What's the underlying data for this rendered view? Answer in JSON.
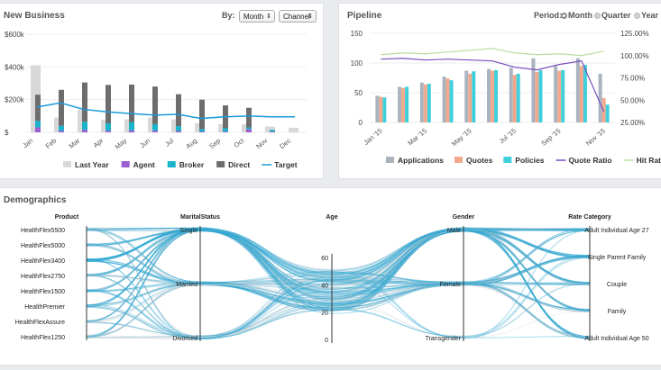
{
  "new_business": {
    "title": "New Business",
    "by_label": "By:",
    "period_select": "Month",
    "group_select": "Channel",
    "legend": [
      {
        "name": "Last Year",
        "color": "#d8d8d8",
        "type": "box"
      },
      {
        "name": "Agent",
        "color": "#9b5fd0",
        "type": "box"
      },
      {
        "name": "Broker",
        "color": "#1ab3c9",
        "type": "box"
      },
      {
        "name": "Direct",
        "color": "#6d6d6d",
        "type": "box"
      },
      {
        "name": "Target",
        "color": "#1a9ad6",
        "type": "line"
      }
    ]
  },
  "pipeline": {
    "title": "Pipeline",
    "period_label": "Period:",
    "options": [
      {
        "label": "Month",
        "selected": true
      },
      {
        "label": "Quarter",
        "selected": false
      },
      {
        "label": "Year",
        "selected": false
      }
    ],
    "legend": [
      {
        "name": "Applications",
        "color": "#a9b4c0",
        "type": "box"
      },
      {
        "name": "Quotes",
        "color": "#f3a98d",
        "type": "box"
      },
      {
        "name": "Policies",
        "color": "#3fd0dc",
        "type": "box"
      },
      {
        "name": "Quote Ratio",
        "color": "#7a4fc0",
        "type": "line"
      },
      {
        "name": "Hit Ratio",
        "color": "#b9dca0",
        "type": "line"
      }
    ]
  },
  "demographics": {
    "title": "Demographics",
    "axes": [
      {
        "name": "Product",
        "labels": [
          "HealthFlex5500",
          "HealthFlex5000",
          "HealthFlex3400",
          "HealthFlex2750",
          "HealthFlex1500",
          "HealthPremier",
          "HealthFlexAssure",
          "HealthFlex1250"
        ]
      },
      {
        "name": "MaritalStatus",
        "labels": [
          "Single",
          "Married",
          "Divorced"
        ]
      },
      {
        "name": "Age",
        "labels": [
          "60",
          "40",
          "20",
          "0"
        ]
      },
      {
        "name": "Gender",
        "labels": [
          "Male",
          "Female",
          "Transgender"
        ]
      },
      {
        "name": "Rate Category",
        "labels": [
          "Adult Individual Age 27",
          "Single Parent Family",
          "Couple",
          "Family",
          "Adult Individual Age 50"
        ]
      }
    ]
  },
  "chart_data": [
    {
      "type": "bar",
      "categories": [
        "Jan",
        "Feb",
        "Mar",
        "Apr",
        "May",
        "Jun",
        "Jul",
        "Aug",
        "Sep",
        "Oct",
        "Nov",
        "Dec"
      ],
      "yticks": [
        "$600k",
        "$400k",
        "$200k",
        "$"
      ],
      "ylim": [
        0,
        600000
      ],
      "series": [
        {
          "name": "Last Year",
          "color": "#d8d8d8",
          "values": [
            410000,
            90000,
            140000,
            75000,
            80000,
            90000,
            80000,
            55000,
            50000,
            50000,
            35000,
            28000
          ]
        },
        {
          "name": "Agent",
          "color": "#9b5fd0",
          "values": [
            30000,
            10000,
            15000,
            10000,
            12000,
            10000,
            8000,
            5000,
            5000,
            20000,
            5000,
            0
          ]
        },
        {
          "name": "Broker",
          "color": "#1ab3c9",
          "values": [
            40000,
            30000,
            50000,
            45000,
            50000,
            40000,
            30000,
            15000,
            20000,
            10000,
            10000,
            0
          ]
        },
        {
          "name": "Direct",
          "color": "#6d6d6d",
          "values": [
            160000,
            220000,
            240000,
            235000,
            230000,
            230000,
            195000,
            180000,
            140000,
            120000,
            0,
            0
          ]
        },
        {
          "name": "Target",
          "color": "#1a9ad6",
          "values": [
            155000,
            180000,
            140000,
            125000,
            115000,
            105000,
            110000,
            85000,
            95000,
            100000,
            95000,
            95000
          ]
        }
      ]
    },
    {
      "type": "bar",
      "categories": [
        "Jan '15",
        "Feb '15",
        "Mar '15",
        "Apr '15",
        "May '15",
        "Jun '15",
        "Jul '15",
        "Aug '15",
        "Sep '15",
        "Oct '15",
        "Nov '15"
      ],
      "xticks": [
        "Jan '15",
        "Mar '15",
        "May '15",
        "Jul '15",
        "Sep '15",
        "Nov '15"
      ],
      "yticks": [
        "150",
        "100",
        "50",
        "0"
      ],
      "ylim": [
        0,
        150
      ],
      "y2ticks": [
        "125.00%",
        "100.00%",
        "75.00%",
        "50.00%",
        "25.00%"
      ],
      "y2lim": [
        25,
        125
      ],
      "series": [
        {
          "name": "Applications",
          "color": "#a9b4c0",
          "values": [
            45,
            60,
            67,
            77,
            87,
            90,
            92,
            108,
            95,
            108,
            82
          ]
        },
        {
          "name": "Quotes",
          "color": "#f3a98d",
          "values": [
            43,
            58,
            64,
            74,
            82,
            87,
            80,
            85,
            87,
            95,
            41
          ]
        },
        {
          "name": "Policies",
          "color": "#3fd0dc",
          "values": [
            42,
            60,
            65,
            71,
            86,
            88,
            82,
            88,
            88,
            97,
            30
          ]
        },
        {
          "name": "Quote Ratio",
          "color": "#7a4fc0",
          "values": [
            96,
            97,
            95,
            96,
            95,
            94,
            87,
            84,
            90,
            94,
            37
          ]
        },
        {
          "name": "Hit Ratio",
          "color": "#b9dca0",
          "values": [
            101,
            103,
            102,
            104,
            106,
            108,
            103,
            101,
            102,
            100,
            105
          ]
        }
      ]
    }
  ]
}
